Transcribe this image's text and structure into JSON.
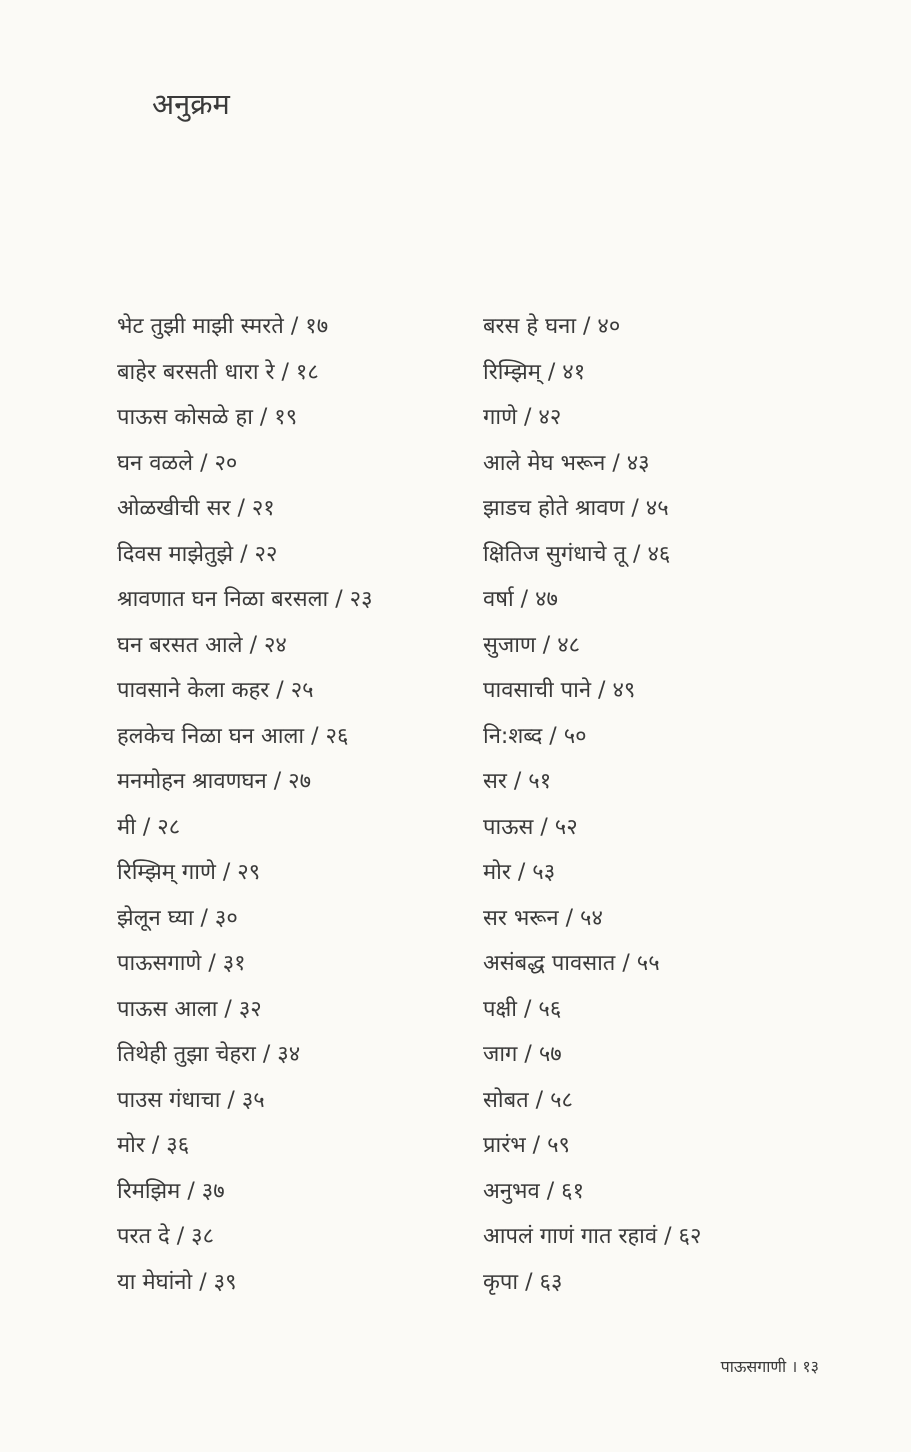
{
  "title": "अनुक्रम",
  "left_entries": [
    {
      "title": "भेट तुझी माझी स्मरते",
      "page": "१७"
    },
    {
      "title": "बाहेर बरसती धारा रे",
      "page": "१८"
    },
    {
      "title": "पाऊस कोसळे हा",
      "page": "१९"
    },
    {
      "title": "घन वळले",
      "page": "२०"
    },
    {
      "title": "ओळखीची सर",
      "page": "२१"
    },
    {
      "title": "दिवस माझेतुझे",
      "page": "२२"
    },
    {
      "title": "श्रावणात घन निळा बरसला",
      "page": "२३"
    },
    {
      "title": "घन बरसत आले",
      "page": "२४"
    },
    {
      "title": "पावसाने केला कहर",
      "page": "२५"
    },
    {
      "title": "हलकेच निळा घन आला",
      "page": "२६"
    },
    {
      "title": "मनमोहन श्रावणघन",
      "page": "२७"
    },
    {
      "title": "मी",
      "page": "२८"
    },
    {
      "title": "रिम्झिम् गाणे",
      "page": "२९"
    },
    {
      "title": "झेलून घ्या",
      "page": "३०"
    },
    {
      "title": "पाऊसगाणे",
      "page": "३१"
    },
    {
      "title": "पाऊस आला",
      "page": "३२"
    },
    {
      "title": "तिथेही तुझा चेहरा",
      "page": "३४"
    },
    {
      "title": "पाउस गंधाचा",
      "page": "३५"
    },
    {
      "title": "मोर",
      "page": "३६"
    },
    {
      "title": "रिमझिम",
      "page": "३७"
    },
    {
      "title": "परत दे",
      "page": "३८"
    },
    {
      "title": "या मेघांनो",
      "page": "३९"
    }
  ],
  "right_entries": [
    {
      "title": "बरस हे घना",
      "page": "४०"
    },
    {
      "title": "रिम्झिम्",
      "page": "४१"
    },
    {
      "title": "गाणे",
      "page": "४२"
    },
    {
      "title": "आले मेघ भरून",
      "page": "४३"
    },
    {
      "title": "झाडच होते श्रावण",
      "page": "४५"
    },
    {
      "title": "क्षितिज सुगंधाचे तू",
      "page": "४६"
    },
    {
      "title": "वर्षा",
      "page": "४७"
    },
    {
      "title": "सुजाण",
      "page": "४८"
    },
    {
      "title": "पावसाची पाने",
      "page": "४९"
    },
    {
      "title": "नि:शब्द",
      "page": "५०"
    },
    {
      "title": "सर",
      "page": "५१"
    },
    {
      "title": "पाऊस",
      "page": "५२"
    },
    {
      "title": "मोर",
      "page": "५३"
    },
    {
      "title": "सर भरून",
      "page": "५४"
    },
    {
      "title": "असंबद्ध पावसात",
      "page": "५५"
    },
    {
      "title": "पक्षी",
      "page": "५६"
    },
    {
      "title": "जाग",
      "page": "५७"
    },
    {
      "title": "सोबत",
      "page": "५८"
    },
    {
      "title": "प्रारंभ",
      "page": "५९"
    },
    {
      "title": "अनुभव",
      "page": "६१"
    },
    {
      "title": "आपलं गाणं गात रहावं",
      "page": "६२"
    },
    {
      "title": "कृपा",
      "page": "६३"
    }
  ],
  "footer": {
    "book_title": "पाऊसगाणी",
    "separator": "।",
    "page_number": "१३"
  }
}
